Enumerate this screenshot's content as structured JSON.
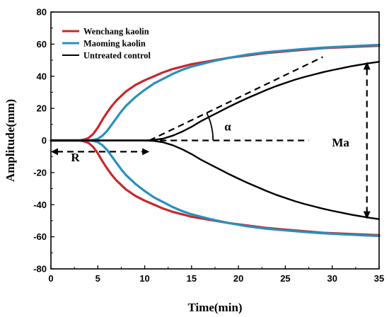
{
  "chart_data": {
    "type": "line",
    "xlabel": "Time(min)",
    "ylabel": "Amplitude(mm)",
    "xlim": [
      0,
      35
    ],
    "ylim": [
      -80,
      80
    ],
    "x_ticks": [
      "0",
      "5",
      "10",
      "15",
      "20",
      "25",
      "30",
      "35"
    ],
    "y_ticks": [
      "80",
      "60",
      "40",
      "20",
      "0",
      "-20",
      "-40",
      "-60",
      "-80"
    ],
    "grid": false,
    "legend_position": "top-left",
    "series": [
      {
        "name": "Wenchang kaolin",
        "color": "#c8282d",
        "x": [
          0,
          2,
          3,
          3.5,
          4,
          4.5,
          5,
          5.5,
          6,
          6.5,
          7,
          8,
          9,
          10,
          11,
          12,
          13,
          14,
          15,
          17,
          19,
          21,
          23,
          25,
          27,
          29,
          31,
          33,
          35
        ],
        "upper": [
          0,
          0,
          0,
          0.5,
          1.5,
          4,
          8,
          13,
          17.5,
          21.5,
          25,
          30.5,
          34.5,
          37.5,
          40,
          42.5,
          44.5,
          46,
          47.5,
          49.5,
          51.5,
          53,
          54.5,
          55.5,
          56.5,
          57.5,
          58,
          58.5,
          59
        ],
        "lower": [
          0,
          0,
          0,
          -0.5,
          -1.5,
          -4,
          -8,
          -13,
          -17.5,
          -21.5,
          -25,
          -30.5,
          -34.5,
          -37.5,
          -40,
          -42.5,
          -44.5,
          -46,
          -47.5,
          -49.5,
          -51.5,
          -53,
          -54.5,
          -55.5,
          -56.5,
          -57.5,
          -58,
          -58.5,
          -59
        ]
      },
      {
        "name": "Maoming kaolin",
        "color": "#2a8fbd",
        "x": [
          0,
          2,
          3,
          4,
          4.5,
          5,
          5.5,
          6,
          6.5,
          7,
          7.5,
          8,
          9,
          10,
          11,
          12,
          13,
          14,
          15,
          17,
          19,
          21,
          23,
          25,
          27,
          29,
          31,
          33,
          35
        ],
        "upper": [
          0,
          0,
          0,
          0,
          0.3,
          1,
          3,
          6,
          10,
          14,
          18,
          21.5,
          27,
          31.5,
          35.5,
          38.5,
          41.5,
          44,
          46,
          49,
          51.5,
          53.5,
          55,
          56,
          57,
          57.8,
          58.4,
          59,
          59.5
        ],
        "lower": [
          0,
          0,
          0,
          0,
          -0.3,
          -1,
          -3,
          -6,
          -10,
          -14,
          -18,
          -21.5,
          -27,
          -31.5,
          -35.5,
          -38.5,
          -41.5,
          -44,
          -46,
          -49,
          -51.5,
          -53.5,
          -55,
          -56,
          -57,
          -57.8,
          -58.4,
          -59,
          -59.5
        ]
      },
      {
        "name": "Untreated control",
        "color": "#000000",
        "x": [
          0,
          5,
          8,
          10,
          11,
          12,
          13,
          14,
          15,
          16,
          17,
          18,
          19,
          20,
          21,
          22,
          23,
          24,
          25,
          26,
          27,
          28,
          29,
          30,
          31,
          32,
          33,
          34,
          35
        ],
        "upper": [
          0,
          0,
          0,
          0,
          0.3,
          1.2,
          3,
          5.5,
          8.5,
          12,
          15,
          18,
          21,
          23.8,
          26.5,
          29,
          31.5,
          33.8,
          35.8,
          37.8,
          39.5,
          41,
          42.5,
          43.8,
          45,
          46.2,
          47.2,
          48.2,
          49
        ],
        "lower": [
          0,
          0,
          0,
          0,
          -0.3,
          -1.2,
          -3,
          -5.5,
          -8.5,
          -12,
          -15,
          -18,
          -21,
          -23.8,
          -26.5,
          -29,
          -31.5,
          -33.8,
          -35.8,
          -37.8,
          -39.5,
          -41,
          -42.5,
          -43.8,
          -45,
          -46.2,
          -47.2,
          -48.2,
          -49
        ]
      }
    ],
    "annotations": {
      "R": {
        "label": "R",
        "x_start": 0,
        "x_end": 10.5,
        "y": -7
      },
      "alpha": {
        "label": "α",
        "baseline_x": [
          10.5,
          27.5
        ],
        "tangent_x": [
          10.5,
          29
        ],
        "tangent_y": [
          0,
          52
        ]
      },
      "Ma": {
        "label": "Ma",
        "x": 33.7,
        "y_top": 49,
        "y_bottom": -49
      }
    }
  }
}
